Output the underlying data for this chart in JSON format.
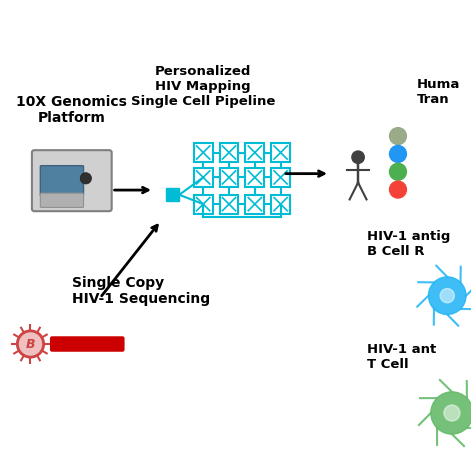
{
  "bg_color": "#ffffff",
  "title_10x": "10X Genomics\nPlatform",
  "title_pipeline": "Personalized\nHIV Mapping\nSingle Cell Pipeline",
  "title_sequencing": "Single Copy\nHIV-1 Sequencing",
  "teal": "#00BCD4",
  "dark_gray": "#404040",
  "red": "#cc0000",
  "dot_colors": [
    "#9aab89",
    "#2196F3",
    "#4CAF50",
    "#f44336"
  ],
  "bcell_color": "#29B6F6",
  "tcell_color": "#66BB6A",
  "machine_body": "#d0d0d0",
  "machine_screen": "#5080a0",
  "machine_panel": "#b0b0b0",
  "machine_btn": "#303030",
  "virus_fill": "#f0c0c0",
  "virus_edge": "#cc4444"
}
